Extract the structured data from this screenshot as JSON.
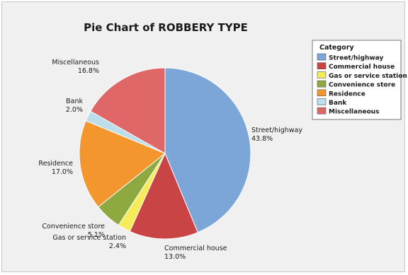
{
  "chart_data": {
    "type": "pie",
    "title": "Pie Chart of ROBBERY TYPE",
    "legend": {
      "title": "Category",
      "placement": "right"
    },
    "slices": [
      {
        "label": "Street/highway",
        "value": 43.8,
        "value_label": "43.8%",
        "color": "#7da6d8"
      },
      {
        "label": "Commercial house",
        "value": 13.0,
        "value_label": "13.0%",
        "color": "#c94444"
      },
      {
        "label": "Gas or service station",
        "value": 2.4,
        "value_label": "2.4%",
        "color": "#f6ec5a"
      },
      {
        "label": "Convenience store",
        "value": 5.1,
        "value_label": "5.1%",
        "color": "#8ea93f"
      },
      {
        "label": "Residence",
        "value": 17.0,
        "value_label": "17.0%",
        "color": "#f4962e"
      },
      {
        "label": "Bank",
        "value": 2.0,
        "value_label": "2.0%",
        "color": "#bcdeea"
      },
      {
        "label": "Miscellaneous",
        "value": 16.8,
        "value_label": "16.8%",
        "color": "#e06767"
      }
    ]
  }
}
